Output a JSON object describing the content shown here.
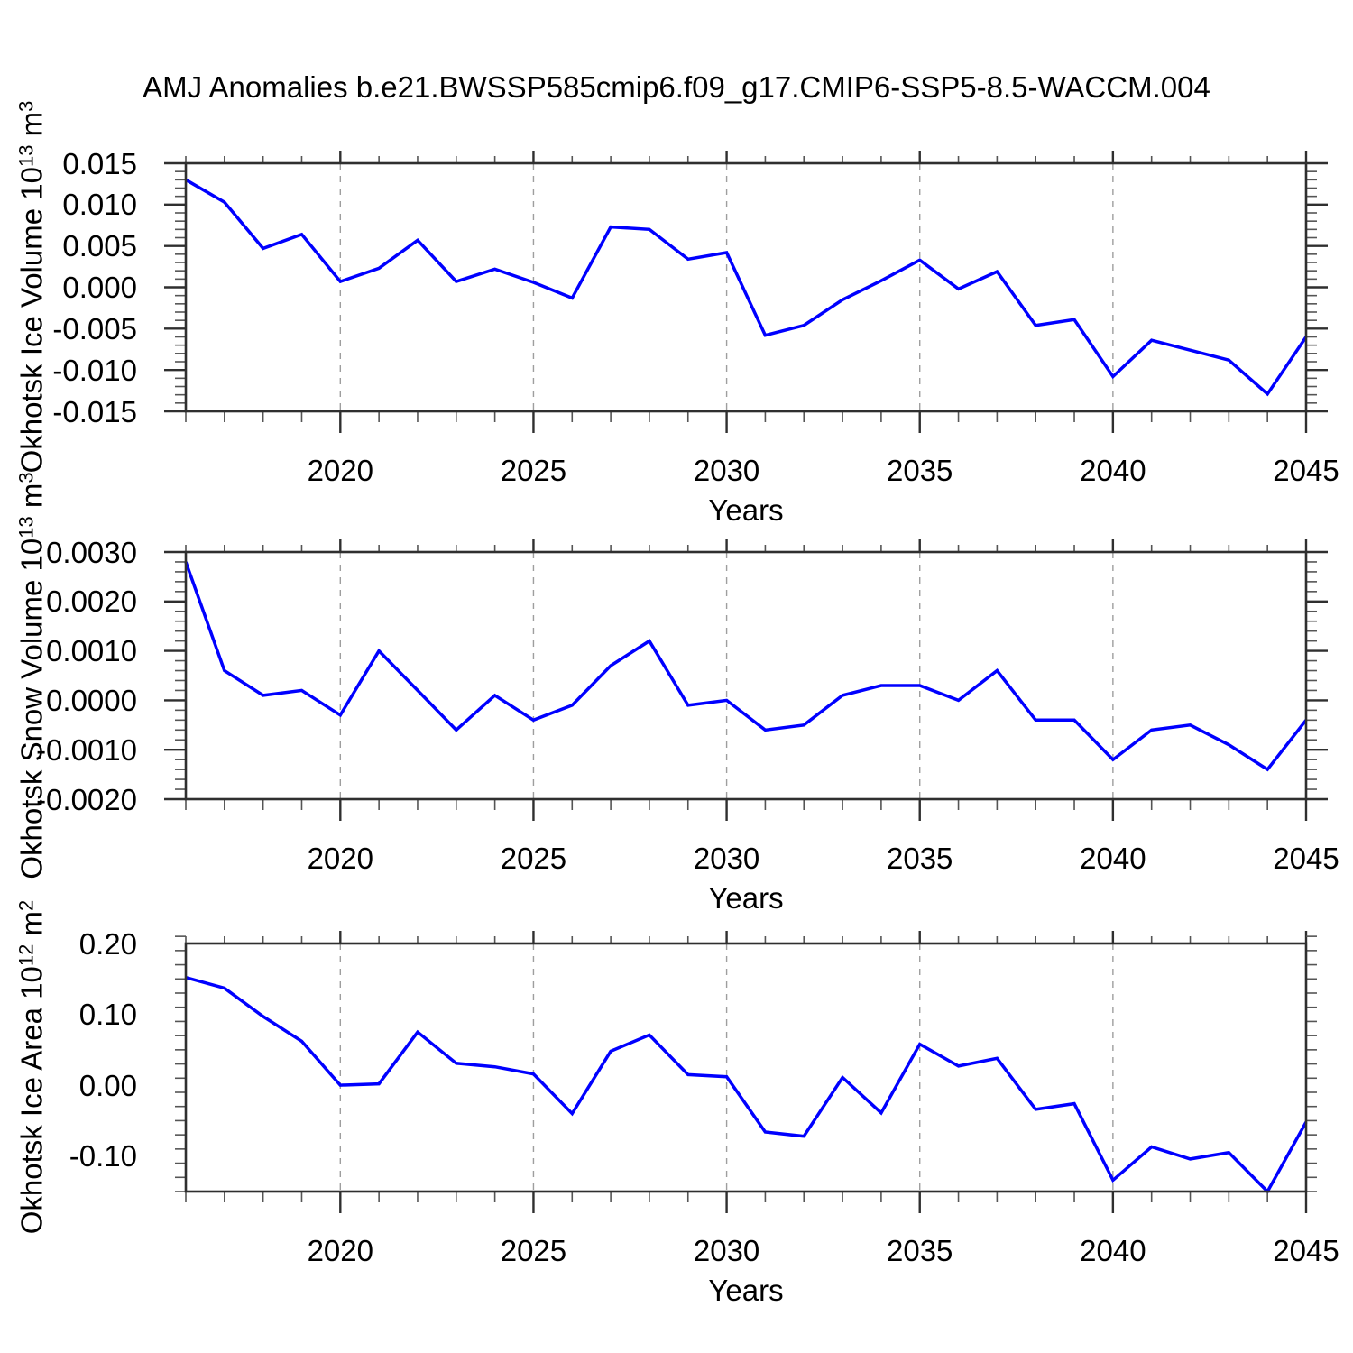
{
  "title": "AMJ Anomalies b.e21.BWSSP585cmip6.f09_g17.CMIP6-SSP5-8.5-WACCM.004",
  "colors": {
    "line": "#0000ff",
    "axis": "#2f2f2f",
    "minor_tick": "#555555",
    "grid": "#9e9e9e",
    "text": "#000000",
    "background": "#ffffff"
  },
  "chart_data": [
    {
      "type": "line",
      "name": "okhotsk-ice-volume",
      "ylabel_pre": "Okhotsk Ice Volume 10",
      "ylabel_exp": "13",
      "ylabel_mid": " m",
      "ylabel_exp2": "3",
      "xlabel": "Years",
      "x": [
        2016,
        2017,
        2018,
        2019,
        2020,
        2021,
        2022,
        2023,
        2024,
        2025,
        2026,
        2027,
        2028,
        2029,
        2030,
        2031,
        2032,
        2033,
        2034,
        2035,
        2036,
        2037,
        2038,
        2039,
        2040,
        2041,
        2042,
        2043,
        2044,
        2045
      ],
      "values": [
        0.013,
        0.0103,
        0.0047,
        0.0064,
        0.0007,
        0.0023,
        0.0057,
        0.0007,
        0.0022,
        0.0006,
        -0.0013,
        0.0073,
        0.007,
        0.0034,
        0.0042,
        -0.0058,
        -0.0046,
        -0.0015,
        0.0008,
        0.0033,
        -0.0002,
        0.0019,
        -0.0046,
        -0.0039,
        -0.0108,
        -0.0064,
        -0.0076,
        -0.0088,
        -0.0129,
        -0.006
      ],
      "ylim": [
        -0.015,
        0.015
      ],
      "ytick_values": [
        0.015,
        0.01,
        0.005,
        0.0,
        -0.005,
        -0.01,
        -0.015
      ],
      "ytick_labels": [
        "0.015",
        "0.010",
        "0.005",
        "0.000",
        "-0.005",
        "-0.010",
        "-0.015"
      ],
      "yminor_step": 0.001,
      "xtick_values": [
        2020,
        2025,
        2030,
        2035,
        2040,
        2045
      ],
      "xtick_labels": [
        "2020",
        "2025",
        "2030",
        "2035",
        "2040",
        "2045"
      ],
      "xminor_step": 1,
      "gridlines_x": [
        2020,
        2025,
        2030,
        2035,
        2040
      ],
      "grid": "vertical-dashed",
      "legend": "none"
    },
    {
      "type": "line",
      "name": "okhotsk-snow-volume",
      "ylabel_pre": "Okhotsk Snow Volume 10",
      "ylabel_exp": "13",
      "ylabel_mid": " m",
      "ylabel_exp2": "3",
      "xlabel": "Years",
      "x": [
        2016,
        2017,
        2018,
        2019,
        2020,
        2021,
        2022,
        2023,
        2024,
        2025,
        2026,
        2027,
        2028,
        2029,
        2030,
        2031,
        2032,
        2033,
        2034,
        2035,
        2036,
        2037,
        2038,
        2039,
        2040,
        2041,
        2042,
        2043,
        2044,
        2045
      ],
      "values": [
        0.0028,
        0.0006,
        0.0001,
        0.0002,
        -0.0003,
        0.001,
        0.0002,
        -0.0006,
        0.0001,
        -0.0004,
        -0.0001,
        0.0007,
        0.0012,
        -0.0001,
        0.0,
        -0.0006,
        -0.0005,
        0.0001,
        0.0003,
        0.0003,
        0.0,
        0.0006,
        -0.0004,
        -0.0004,
        -0.0012,
        -0.0006,
        -0.0005,
        -0.0009,
        -0.0014,
        -0.0004
      ],
      "ylim": [
        -0.002,
        0.003
      ],
      "ytick_values": [
        0.003,
        0.002,
        0.001,
        0.0,
        -0.001,
        -0.002
      ],
      "ytick_labels": [
        "0.0030",
        "0.0020",
        "0.0010",
        "0.0000",
        "-0.0010",
        "-0.0020"
      ],
      "yminor_step": 0.0002,
      "xtick_values": [
        2020,
        2025,
        2030,
        2035,
        2040,
        2045
      ],
      "xtick_labels": [
        "2020",
        "2025",
        "2030",
        "2035",
        "2040",
        "2045"
      ],
      "xminor_step": 1,
      "gridlines_x": [
        2020,
        2025,
        2030,
        2035,
        2040
      ],
      "grid": "vertical-dashed",
      "legend": "none"
    },
    {
      "type": "line",
      "name": "okhotsk-ice-area",
      "ylabel_pre": "Okhotsk Ice Area 10",
      "ylabel_exp": "12",
      "ylabel_mid": " m",
      "ylabel_exp2": "2",
      "xlabel": "Years",
      "x": [
        2016,
        2017,
        2018,
        2019,
        2020,
        2021,
        2022,
        2023,
        2024,
        2025,
        2026,
        2027,
        2028,
        2029,
        2030,
        2031,
        2032,
        2033,
        2034,
        2035,
        2036,
        2037,
        2038,
        2039,
        2040,
        2041,
        2042,
        2043,
        2044,
        2045
      ],
      "values": [
        0.152,
        0.137,
        0.097,
        0.062,
        0.0,
        0.002,
        0.075,
        0.031,
        0.026,
        0.016,
        -0.04,
        0.048,
        0.071,
        0.015,
        0.012,
        -0.066,
        -0.072,
        0.011,
        -0.039,
        0.058,
        0.027,
        0.038,
        -0.034,
        -0.026,
        -0.134,
        -0.087,
        -0.104,
        -0.095,
        -0.15,
        -0.052
      ],
      "ylim": [
        -0.15,
        0.2
      ],
      "ytick_values": [
        0.2,
        0.1,
        0.0,
        -0.1
      ],
      "ytick_labels": [
        "0.20",
        "0.10",
        "0.00",
        "-0.10"
      ],
      "yminor_step": 0.02,
      "xtick_values": [
        2020,
        2025,
        2030,
        2035,
        2040,
        2045
      ],
      "xtick_labels": [
        "2020",
        "2025",
        "2030",
        "2035",
        "2040",
        "2045"
      ],
      "xminor_step": 1,
      "gridlines_x": [
        2020,
        2025,
        2030,
        2035,
        2040
      ],
      "grid": "vertical-dashed",
      "legend": "none"
    }
  ]
}
